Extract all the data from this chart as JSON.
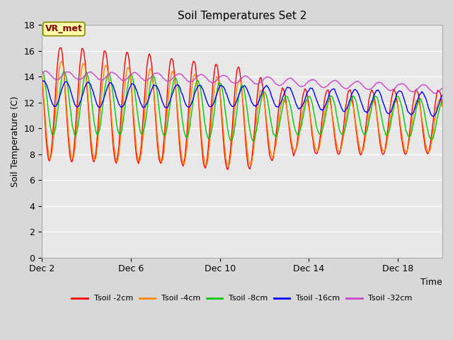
{
  "title": "Soil Temperatures Set 2",
  "xlabel": "Time",
  "ylabel": "Soil Temperature (C)",
  "ylim": [
    0,
    18
  ],
  "yticks": [
    0,
    2,
    4,
    6,
    8,
    10,
    12,
    14,
    16,
    18
  ],
  "xlim_days": [
    2,
    20
  ],
  "xtick_labels": [
    "Dec 2",
    "Dec 6",
    "Dec 10",
    "Dec 14",
    "Dec 18"
  ],
  "xtick_positions": [
    2,
    6,
    10,
    14,
    18
  ],
  "fig_bg_color": "#d8d8d8",
  "plot_bg_color": "#e8e8e8",
  "grid_color": "#ffffff",
  "annotation_text": "VR_met",
  "annotation_box_color": "#ffffaa",
  "annotation_text_color": "#880000",
  "annotation_border_color": "#888800",
  "colors": {
    "Tsoil -2cm": "#ff0000",
    "Tsoil -4cm": "#ff8800",
    "Tsoil -8cm": "#00cc00",
    "Tsoil -16cm": "#0000ff",
    "Tsoil -32cm": "#cc44cc"
  },
  "legend_labels": [
    "Tsoil -2cm",
    "Tsoil -4cm",
    "Tsoil -8cm",
    "Tsoil -16cm",
    "Tsoil -32cm"
  ]
}
